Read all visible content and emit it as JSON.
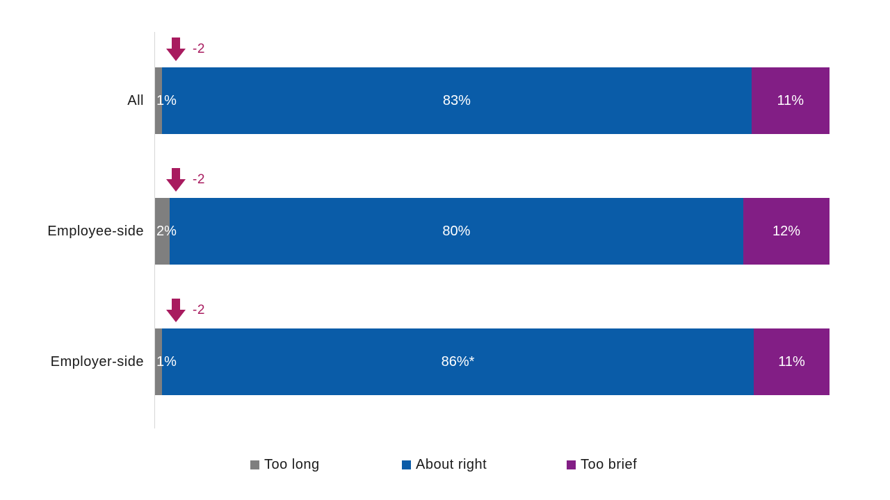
{
  "chart_data": {
    "type": "bar",
    "orientation": "horizontal",
    "stacked": true,
    "grid": false,
    "x_axis_visible": false,
    "categories": [
      "All",
      "Employee-side",
      "Employer-side"
    ],
    "series": [
      {
        "name": "Too long",
        "color": "#7f7f7f",
        "values": [
          1,
          2,
          1
        ],
        "data_labels": [
          "1%",
          "2%",
          "1%"
        ]
      },
      {
        "name": "About right",
        "color": "#0a5ca8",
        "values": [
          83,
          80,
          86
        ],
        "data_labels": [
          "83%",
          "80%",
          "86%*"
        ]
      },
      {
        "name": "Too brief",
        "color": "#821e85",
        "values": [
          11,
          12,
          11
        ],
        "data_labels": [
          "11%",
          "12%",
          "11%"
        ]
      }
    ],
    "annotations": [
      {
        "category": "All",
        "symbol": "down-arrow",
        "text": "-2",
        "color": "#a81b5f"
      },
      {
        "category": "Employee-side",
        "symbol": "down-arrow",
        "text": "-2",
        "color": "#a81b5f"
      },
      {
        "category": "Employer-side",
        "symbol": "down-arrow",
        "text": "-2",
        "color": "#a81b5f"
      }
    ],
    "legend": {
      "position": "bottom",
      "entries": [
        "Too long",
        "About right",
        "Too brief"
      ]
    }
  },
  "colors": {
    "axis_line": "#d6d6d6",
    "bar_label_text": "#ffffff",
    "category_label_text": "#1a1a1a",
    "annotation": "#a81b5f",
    "background": "#ffffff"
  }
}
